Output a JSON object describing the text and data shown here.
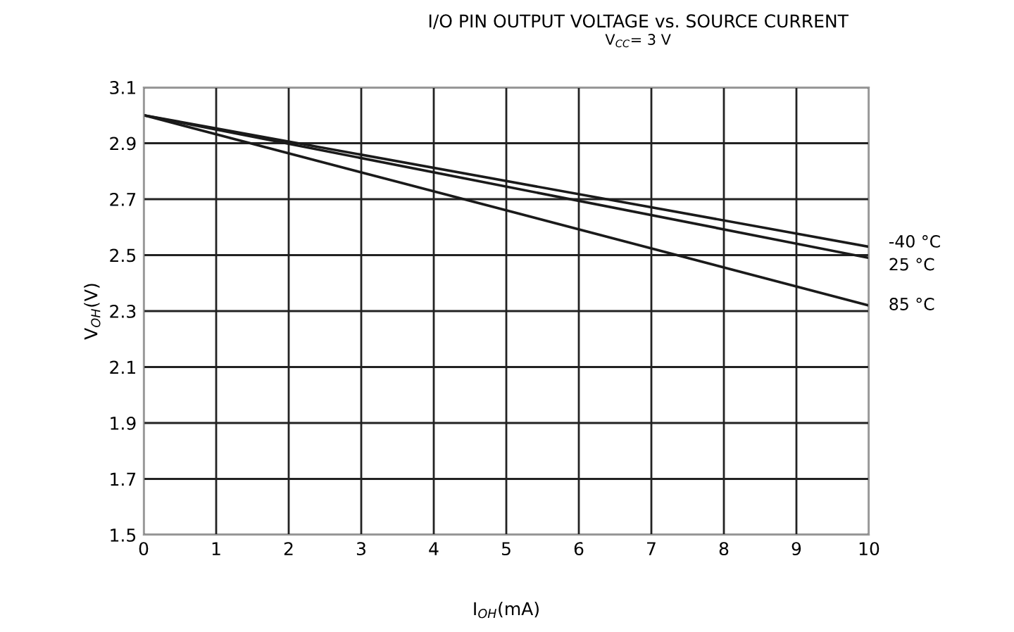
{
  "chart_data": {
    "type": "line",
    "title": "I/O PIN OUTPUT VOLTAGE vs. SOURCE CURRENT",
    "subtitle": "V$_{CC}$= 3 V",
    "xlabel": "I$_{OH}$(mA)",
    "ylabel": "V$_{OH}$(V)",
    "x": [
      0,
      10
    ],
    "series": [
      {
        "name": "-40 °C",
        "color": "#1a1a1a",
        "values": [
          3.0,
          2.53
        ]
      },
      {
        "name": "25 °C",
        "color": "#1a1a1a",
        "values": [
          3.0,
          2.49
        ]
      },
      {
        "name": "85 °C",
        "color": "#1a1a1a",
        "values": [
          3.0,
          2.32
        ]
      }
    ],
    "xlim": [
      0,
      10
    ],
    "xticks": [
      0,
      1,
      2,
      3,
      4,
      5,
      6,
      7,
      8,
      9,
      10
    ],
    "ylim": [
      1.5,
      3.1
    ],
    "yticks": [
      1.5,
      1.7,
      1.9,
      2.1,
      2.3,
      2.5,
      2.7,
      2.9,
      3.1
    ],
    "grid": true,
    "legend": false,
    "marker": "none",
    "line_style": "solid"
  }
}
